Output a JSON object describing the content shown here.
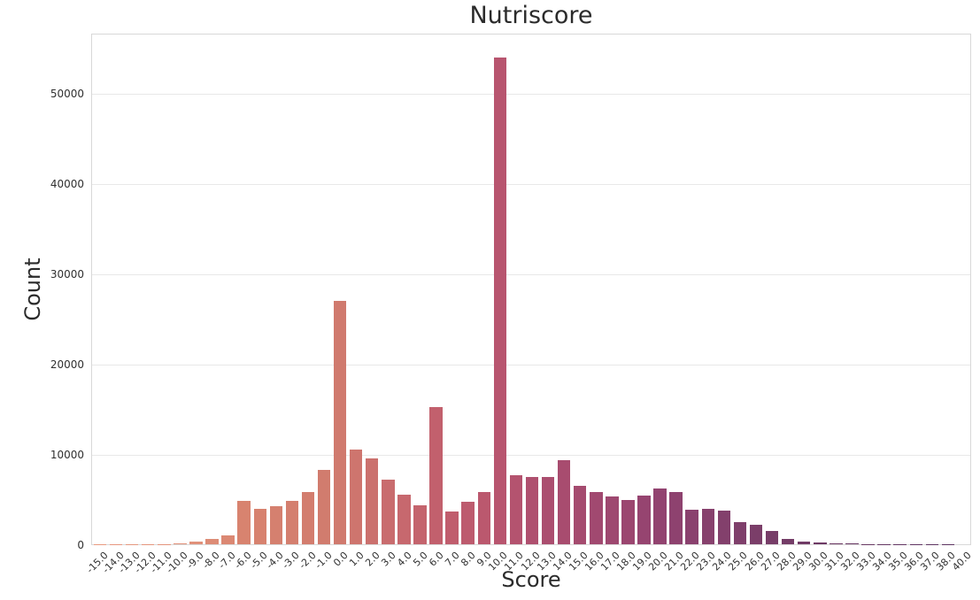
{
  "figure": {
    "background": "#ffffff",
    "title_color": "#2b2b2b",
    "tick_color": "#303030",
    "grid_color": "#e8e8e8",
    "spine_color": "#d8d8d8"
  },
  "chart_data": {
    "type": "bar",
    "title": "Nutriscore",
    "xlabel": "Score",
    "ylabel": "Count",
    "legend": "none",
    "grid": "horizontal",
    "bar_color_style": "flare-like gradient from light salmon (left) to dark purple (right)",
    "palette_stops": [
      {
        "t": 0.0,
        "color": "#e89a80"
      },
      {
        "t": 0.11,
        "color": "#e0917a"
      },
      {
        "t": 0.167,
        "color": "#d8836f"
      },
      {
        "t": 0.278,
        "color": "#d07a6e"
      },
      {
        "t": 0.333,
        "color": "#c96c6e"
      },
      {
        "t": 0.389,
        "color": "#c2606d"
      },
      {
        "t": 0.463,
        "color": "#b8556f"
      },
      {
        "t": 0.519,
        "color": "#ab4e6f"
      },
      {
        "t": 0.611,
        "color": "#9b4670"
      },
      {
        "t": 0.648,
        "color": "#924370"
      },
      {
        "t": 0.722,
        "color": "#83406c"
      },
      {
        "t": 0.778,
        "color": "#773d68"
      },
      {
        "t": 0.833,
        "color": "#6d3a65"
      },
      {
        "t": 1.0,
        "color": "#5a3360"
      }
    ],
    "categories": [
      "-15.0",
      "-14.0",
      "-13.0",
      "-12.0",
      "-11.0",
      "-10.0",
      "-9.0",
      "-8.0",
      "-7.0",
      "-6.0",
      "-5.0",
      "-4.0",
      "-3.0",
      "-2.0",
      "-1.0",
      "0.0",
      "1.0",
      "2.0",
      "3.0",
      "4.0",
      "5.0",
      "6.0",
      "7.0",
      "8.0",
      "9.0",
      "10.0",
      "11.0",
      "12.0",
      "13.0",
      "14.0",
      "15.0",
      "16.0",
      "17.0",
      "18.0",
      "19.0",
      "20.0",
      "21.0",
      "22.0",
      "23.0",
      "24.0",
      "25.0",
      "26.0",
      "27.0",
      "28.0",
      "29.0",
      "30.0",
      "31.0",
      "32.0",
      "33.0",
      "34.0",
      "35.0",
      "36.0",
      "37.0",
      "38.0",
      "40.0"
    ],
    "values": [
      10,
      10,
      15,
      15,
      25,
      60,
      290,
      620,
      1000,
      4800,
      3900,
      4250,
      4850,
      5800,
      8250,
      27000,
      10450,
      9550,
      7150,
      5500,
      4300,
      15200,
      3650,
      4700,
      5800,
      54000,
      7650,
      7450,
      7500,
      9300,
      6450,
      5800,
      5250,
      4900,
      5400,
      6150,
      5800,
      3800,
      3950,
      3700,
      2450,
      2150,
      1470,
      560,
      300,
      240,
      90,
      55,
      40,
      30,
      20,
      15,
      12,
      10,
      5
    ],
    "ylim": [
      0,
      56700
    ],
    "yticks": [
      0,
      10000,
      20000,
      30000,
      40000,
      50000
    ]
  }
}
